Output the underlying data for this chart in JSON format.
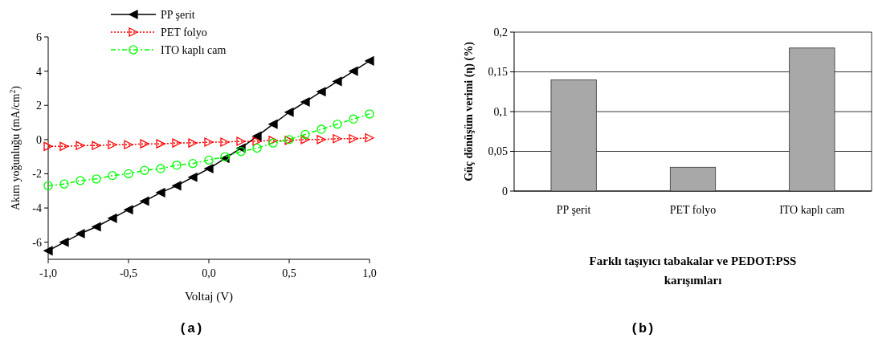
{
  "chart_data": [
    {
      "type": "line",
      "title": "(a)",
      "xlabel": "Voltaj (V)",
      "ylabel": "Akım yoğunluğu (mA/cm$^{2}$)",
      "xlim": [
        -1,
        1
      ],
      "ylim": [
        -7,
        6
      ],
      "xticks": [
        {
          "value": -1,
          "label": "-1,0"
        },
        {
          "value": -0.5,
          "label": "-0,5"
        },
        {
          "value": 0,
          "label": "0,0"
        },
        {
          "value": 0.5,
          "label": "0,5"
        },
        {
          "value": 1,
          "label": "1,0"
        }
      ],
      "yticks": [
        -6,
        -4,
        -2,
        0,
        2,
        4,
        6
      ],
      "legend": "top",
      "grid": false,
      "x": [
        -1,
        -0.9,
        -0.8,
        -0.7,
        -0.6,
        -0.5,
        -0.4,
        -0.3,
        -0.2,
        -0.1,
        0,
        0.1,
        0.2,
        0.3,
        0.4,
        0.5,
        0.6,
        0.7,
        0.8,
        0.9,
        1
      ],
      "series": [
        {
          "name": "PP şerit",
          "color": "#000000",
          "marker": "triangle-left",
          "line_style": "solid",
          "values": [
            -6.5,
            -6.0,
            -5.5,
            -5.1,
            -4.6,
            -4.1,
            -3.6,
            -3.1,
            -2.7,
            -2.2,
            -1.7,
            -1.1,
            -0.5,
            0.2,
            0.9,
            1.6,
            2.2,
            2.8,
            3.4,
            4.0,
            4.6
          ]
        },
        {
          "name": "PET folyo",
          "color": "#ff0000",
          "marker": "triangle-right",
          "line_style": "dotted",
          "values": [
            -0.4,
            -0.4,
            -0.35,
            -0.35,
            -0.3,
            -0.3,
            -0.25,
            -0.25,
            -0.2,
            -0.2,
            -0.15,
            -0.15,
            -0.1,
            -0.1,
            -0.05,
            -0.05,
            0,
            0,
            0.05,
            0.05,
            0.1
          ]
        },
        {
          "name": "ITO kaplı cam",
          "color": "#00ff00",
          "marker": "circle",
          "line_style": "dashed",
          "values": [
            -2.7,
            -2.6,
            -2.4,
            -2.3,
            -2.1,
            -2.0,
            -1.8,
            -1.7,
            -1.5,
            -1.4,
            -1.2,
            -1.0,
            -0.7,
            -0.5,
            -0.2,
            0.0,
            0.3,
            0.6,
            0.9,
            1.2,
            1.5
          ]
        }
      ]
    },
    {
      "type": "bar",
      "title": "(b)",
      "xlabel": "Farklı taşıyıcı tabakalar ve  PEDOT:PSS karışımları",
      "ylabel": "Güç dönüşüm verimi (η) (%)",
      "categories": [
        "PP şerit",
        "PET folyo",
        "ITO kaplı cam"
      ],
      "values": [
        0.14,
        0.03,
        0.18
      ],
      "color": "#a8a8a8",
      "ylim": [
        0,
        0.2
      ],
      "yticks": [
        0,
        {
          "value": 0.05,
          "label": "0,05"
        },
        {
          "value": 0.1,
          "label": "0,1"
        },
        {
          "value": 0.15,
          "label": "0,15"
        },
        {
          "value": 0.2,
          "label": "0,2"
        }
      ],
      "grid": "y"
    }
  ]
}
